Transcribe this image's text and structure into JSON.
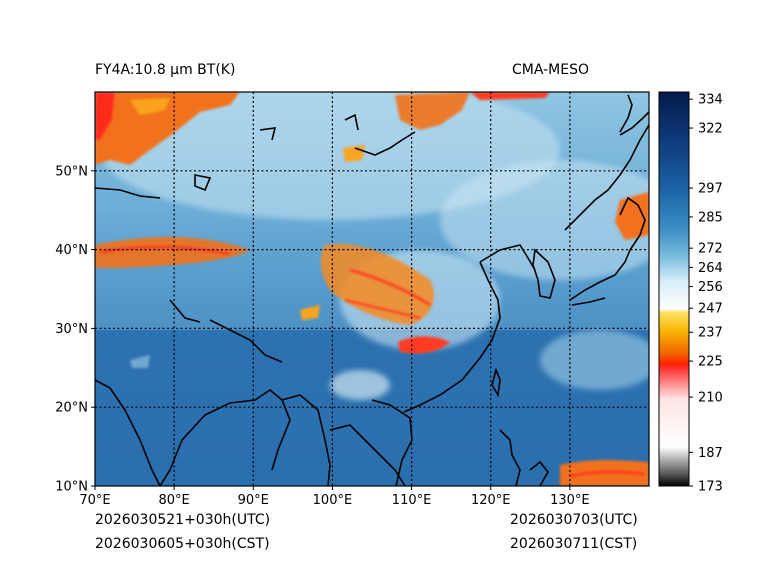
{
  "titles": {
    "left": "FY4A:10.8 µm BT(K)",
    "right": "CMA-MESO"
  },
  "footer": {
    "utc_init": "2026030521+030h(UTC)",
    "cst_init": "2026030605+030h(CST)",
    "utc_valid": "2026030703(UTC)",
    "cst_valid": "2026030711(CST)"
  },
  "map": {
    "lon_range": [
      70,
      140
    ],
    "lat_range": [
      10,
      60
    ],
    "lon_ticks": [
      70,
      80,
      90,
      100,
      110,
      120,
      130
    ],
    "lat_ticks": [
      10,
      20,
      30,
      40,
      50
    ],
    "lon_labels": [
      "70°E",
      "80°E",
      "90°E",
      "100°E",
      "110°E",
      "120°E",
      "130°E"
    ],
    "lat_labels": [
      "10°N",
      "20°N",
      "30°N",
      "40°N",
      "50°N"
    ]
  },
  "colorbar": {
    "min": 173,
    "max": 337,
    "ticks": [
      173,
      187,
      210,
      225,
      237,
      247,
      256,
      264,
      272,
      285,
      297,
      322,
      334
    ],
    "tick_labels": [
      "173",
      "187",
      "210",
      "225",
      "237",
      "247",
      "256",
      "264",
      "272",
      "285",
      "297",
      "322",
      "334"
    ]
  },
  "colors": {
    "ocean": "#3b78b8",
    "land_warm": "#2a6fae",
    "cloud_cold": "#b9dff0",
    "convective": "#f2711a",
    "coastline": "#000000"
  }
}
